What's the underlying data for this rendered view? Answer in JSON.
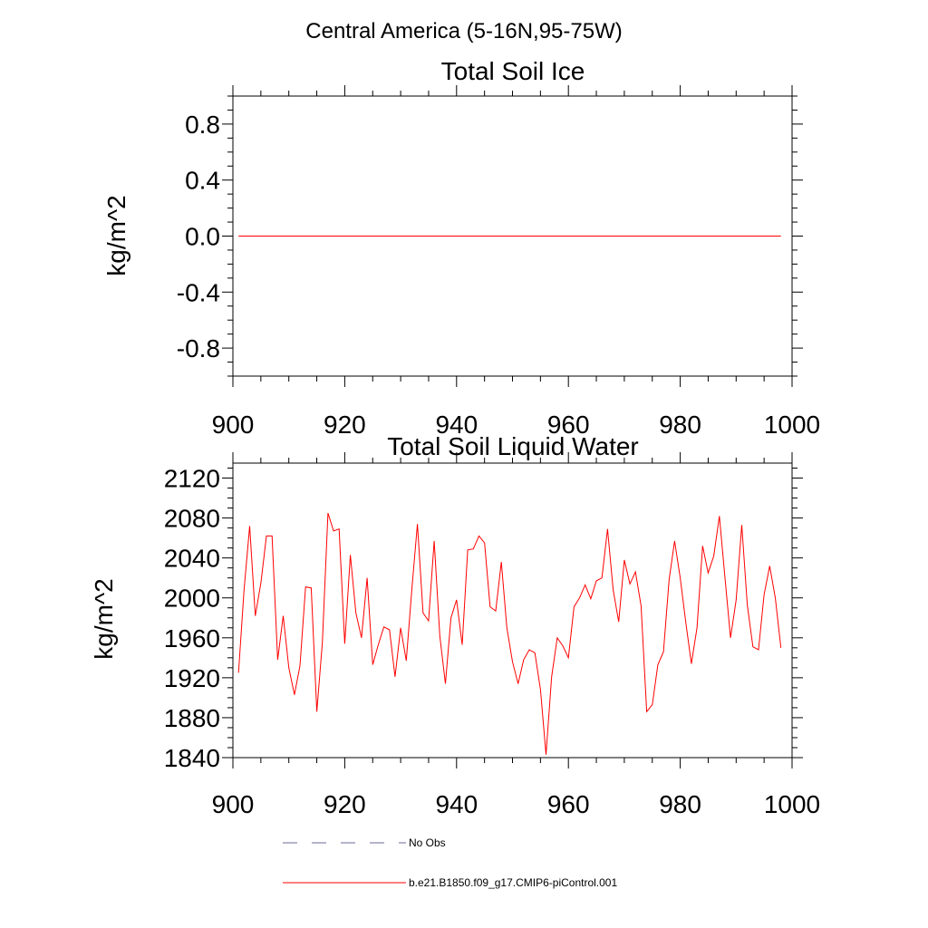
{
  "figure": {
    "main_title": "Central America (5-16N,95-75W)"
  },
  "legend": {
    "items": [
      {
        "label": "No Obs",
        "color": "#6a6a9a",
        "style": "dashed"
      },
      {
        "label": "b.e21.B1850.f09_g17.CMIP6-piControl.001",
        "color": "#ff0000",
        "style": "solid"
      }
    ]
  },
  "chart_data": [
    {
      "type": "line",
      "title": "Total Soil Ice",
      "xlabel": "",
      "ylabel": "kg/m^2",
      "xlim": [
        900,
        1000
      ],
      "ylim": [
        -1.0,
        1.0
      ],
      "xticks": [
        900,
        920,
        940,
        960,
        980,
        1000
      ],
      "yticks": [
        -0.8,
        -0.4,
        0.0,
        0.4,
        0.8
      ],
      "ytick_labels": [
        "-0.8",
        "-0.4",
        "0.0",
        "0.4",
        "0.8"
      ],
      "grid": false,
      "series": [
        {
          "name": "b.e21.B1850.f09_g17.CMIP6-piControl.001",
          "color": "#ff0000",
          "x_start": 901,
          "x_end": 998,
          "values": [
            0.0,
            0.0
          ]
        }
      ]
    },
    {
      "type": "line",
      "title": "Total Soil Liquid Water",
      "xlabel": "",
      "ylabel": "kg/m^2",
      "xlim": [
        900,
        1000
      ],
      "ylim": [
        1840,
        2135
      ],
      "xticks": [
        900,
        920,
        940,
        960,
        980,
        1000
      ],
      "yticks": [
        1840,
        1880,
        1920,
        1960,
        2000,
        2040,
        2080,
        2120
      ],
      "ytick_labels": [
        "1840",
        "1880",
        "1920",
        "1960",
        "2000",
        "2040",
        "2080",
        "2120"
      ],
      "grid": false,
      "series": [
        {
          "name": "b.e21.B1850.f09_g17.CMIP6-piControl.001",
          "color": "#ff0000",
          "x_start": 901,
          "values": [
            1925,
            2008,
            2072,
            1982,
            2015,
            2062,
            2062,
            1938,
            1982,
            1930,
            1903,
            1932,
            2011,
            2010,
            1886,
            1955,
            2085,
            2067,
            2069,
            1954,
            2043,
            1985,
            1960,
            2020,
            1933,
            1953,
            1971,
            1968,
            1921,
            1970,
            1937,
            2008,
            2074,
            1985,
            1977,
            2057,
            1962,
            1914,
            1980,
            1998,
            1953,
            2048,
            2049,
            2062,
            2055,
            1991,
            1987,
            2036,
            1970,
            1936,
            1914,
            1938,
            1948,
            1945,
            1908,
            1843,
            1921,
            1960,
            1952,
            1940,
            1991,
            2000,
            2013,
            1999,
            2017,
            2020,
            2069,
            2008,
            1976,
            2038,
            2014,
            2026,
            1992,
            1886,
            1893,
            1933,
            1946,
            2018,
            2057,
            2020,
            1975,
            1934,
            1970,
            2052,
            2025,
            2042,
            2082,
            2020,
            1960,
            1998,
            2073,
            1993,
            1951,
            1948,
            2003,
            2032,
            2000,
            1950
          ]
        }
      ]
    }
  ]
}
